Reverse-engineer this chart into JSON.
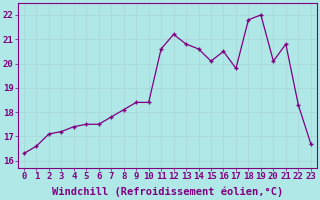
{
  "x": [
    0,
    1,
    2,
    3,
    4,
    5,
    6,
    7,
    8,
    9,
    10,
    11,
    12,
    13,
    14,
    15,
    16,
    17,
    18,
    19,
    20,
    21,
    22,
    23
  ],
  "y": [
    16.3,
    16.6,
    17.1,
    17.2,
    17.4,
    17.5,
    17.5,
    17.8,
    18.1,
    18.4,
    18.4,
    20.6,
    21.2,
    20.8,
    20.6,
    20.1,
    20.5,
    19.8,
    21.8,
    22.0,
    20.1,
    20.8,
    18.3,
    16.7
  ],
  "line_color": "#800080",
  "marker": "+",
  "bg_color": "#b0e8e8",
  "grid_color": "#c8e8e8",
  "xlabel": "Windchill (Refroidissement éolien,°C)",
  "ylabel_ticks": [
    16,
    17,
    18,
    19,
    20,
    21,
    22
  ],
  "xtick_labels": [
    "0",
    "1",
    "2",
    "3",
    "4",
    "5",
    "6",
    "7",
    "8",
    "9",
    "10",
    "11",
    "12",
    "13",
    "14",
    "15",
    "16",
    "17",
    "18",
    "19",
    "20",
    "21",
    "22",
    "23"
  ],
  "xlim": [
    -0.5,
    23.5
  ],
  "ylim": [
    15.7,
    22.5
  ],
  "xlabel_fontsize": 7.5,
  "tick_fontsize": 6.5,
  "xlabel_color": "#800080",
  "tick_color": "#800080"
}
